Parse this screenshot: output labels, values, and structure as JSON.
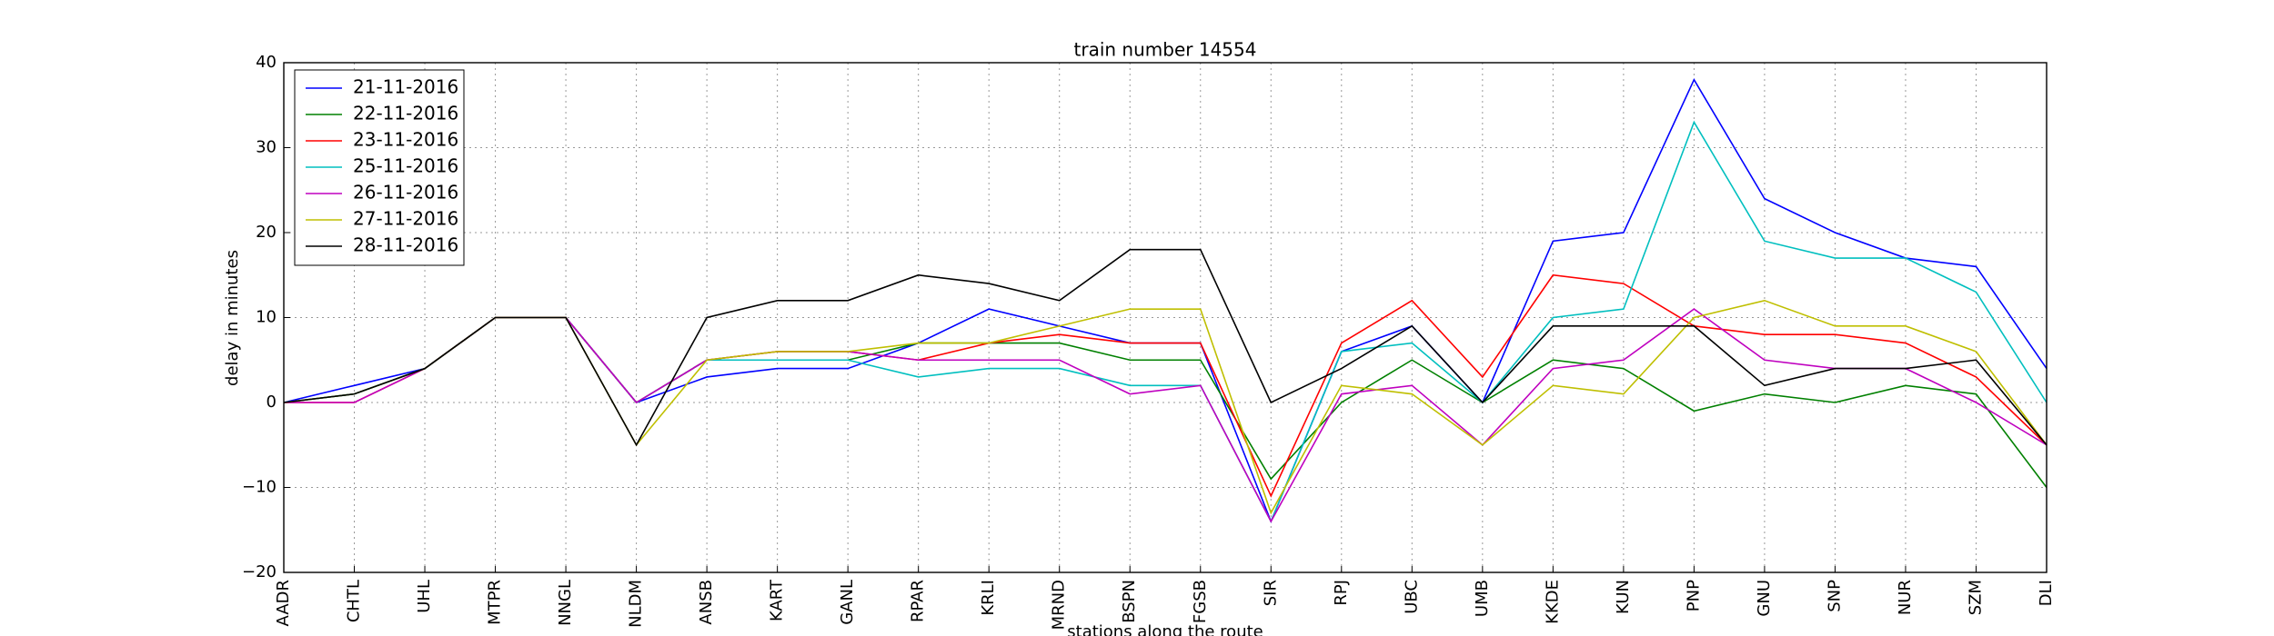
{
  "chart_data": {
    "type": "line",
    "title": "train number 14554",
    "ylabel": "delay in minutes",
    "xlabel": "stations along the route",
    "categories": [
      "AADR",
      "CHTL",
      "UHL",
      "MTPR",
      "NNGL",
      "NLDM",
      "ANSB",
      "KART",
      "GANL",
      "RPAR",
      "KRLI",
      "MRND",
      "BSPN",
      "FGSB",
      "SIR",
      "RPJ",
      "UBC",
      "UMB",
      "KKDE",
      "KUN",
      "PNP",
      "GNU",
      "SNP",
      "NUR",
      "SZM",
      "DLI"
    ],
    "series": [
      {
        "name": "21-11-2016",
        "color": "#0000ff",
        "values": [
          0,
          2,
          4,
          10,
          10,
          0,
          3,
          4,
          4,
          7,
          11,
          9,
          7,
          7,
          -14,
          6,
          9,
          0,
          19,
          20,
          38,
          24,
          20,
          17,
          16,
          4
        ]
      },
      {
        "name": "22-11-2016",
        "color": "#008000",
        "values": [
          0,
          1,
          4,
          10,
          10,
          0,
          5,
          5,
          5,
          7,
          7,
          7,
          5,
          5,
          -9,
          0,
          5,
          0,
          5,
          4,
          -1,
          1,
          0,
          2,
          1,
          -10
        ]
      },
      {
        "name": "23-11-2016",
        "color": "#ff0000",
        "values": [
          0,
          0,
          4,
          10,
          10,
          0,
          5,
          6,
          6,
          5,
          7,
          8,
          7,
          7,
          -11,
          7,
          12,
          3,
          15,
          14,
          9,
          8,
          8,
          7,
          3,
          -5
        ]
      },
      {
        "name": "25-11-2016",
        "color": "#00bfbf",
        "values": [
          0,
          1,
          4,
          10,
          10,
          0,
          5,
          5,
          5,
          3,
          4,
          4,
          2,
          2,
          -14,
          6,
          7,
          0,
          10,
          11,
          33,
          19,
          17,
          17,
          13,
          0
        ]
      },
      {
        "name": "26-11-2016",
        "color": "#bf00bf",
        "values": [
          0,
          0,
          4,
          10,
          10,
          0,
          5,
          6,
          6,
          5,
          5,
          5,
          1,
          2,
          -14,
          1,
          2,
          -5,
          4,
          5,
          11,
          5,
          4,
          4,
          0,
          -5
        ]
      },
      {
        "name": "27-11-2016",
        "color": "#bfbf00",
        "values": [
          0,
          1,
          4,
          10,
          10,
          -5,
          5,
          6,
          6,
          7,
          7,
          9,
          11,
          11,
          -13,
          2,
          1,
          -5,
          2,
          1,
          10,
          12,
          9,
          9,
          6,
          -5
        ]
      },
      {
        "name": "28-11-2016",
        "color": "#000000",
        "values": [
          0,
          1,
          4,
          10,
          10,
          -5,
          10,
          12,
          12,
          15,
          14,
          12,
          18,
          18,
          0,
          4,
          9,
          0,
          9,
          9,
          9,
          2,
          4,
          4,
          5,
          -5
        ]
      }
    ],
    "ylim": [
      -20,
      40
    ],
    "yticks": [
      {
        "value": -20,
        "label": "−20"
      },
      {
        "value": -10,
        "label": "−10"
      },
      0,
      10,
      20,
      30,
      40
    ],
    "grid": true,
    "legend": "upper-left"
  }
}
